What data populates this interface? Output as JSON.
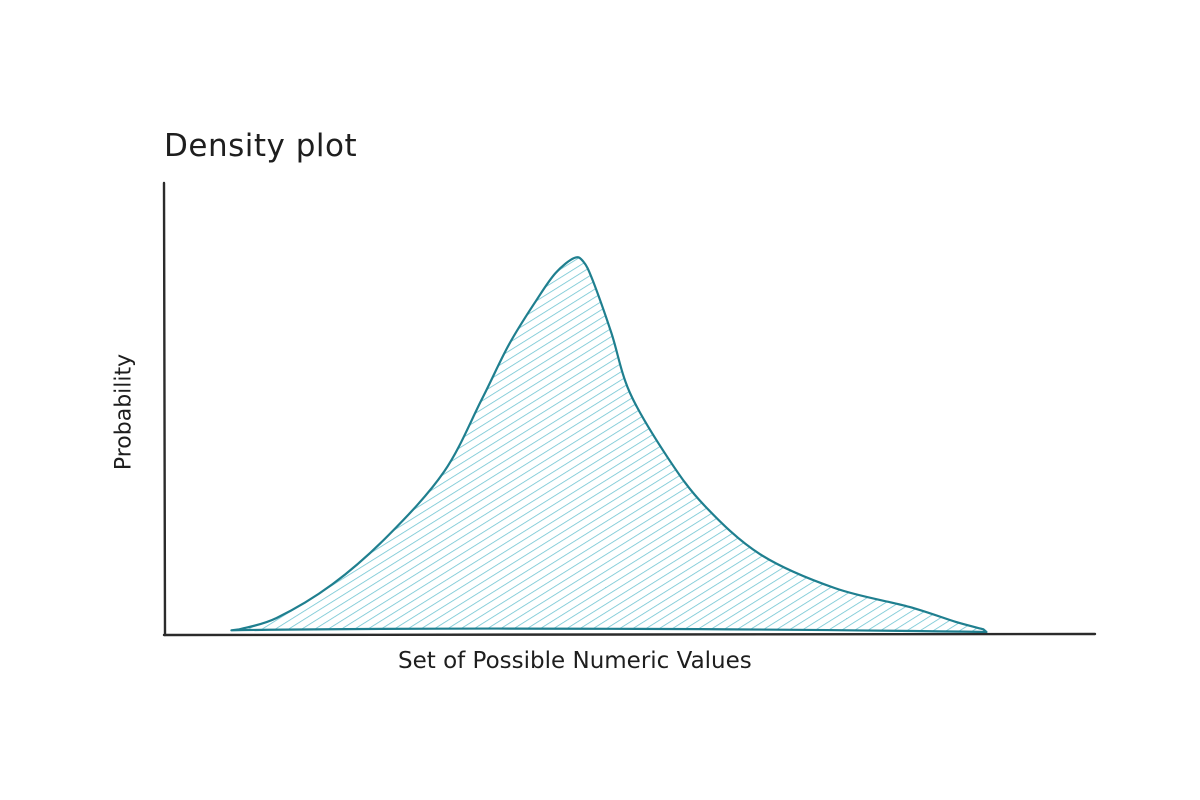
{
  "chart_data": {
    "type": "area",
    "title": "Density plot",
    "xlabel": "Set of Possible Numeric Values",
    "ylabel": "Probability",
    "grid": false,
    "legend": "none",
    "x_ticks": [],
    "y_ticks": [],
    "shape": "unimodal, right-skewed density curve",
    "series": [
      {
        "x": [
          0.08,
          0.12,
          0.18,
          0.24,
          0.3,
          0.34,
          0.37,
          0.4,
          0.42,
          0.44,
          0.45,
          0.46,
          0.48,
          0.5,
          0.54,
          0.58,
          0.64,
          0.72,
          0.8,
          0.85,
          0.88
        ],
        "y": [
          0.01,
          0.04,
          0.13,
          0.26,
          0.43,
          0.62,
          0.77,
          0.89,
          0.96,
          1.0,
          0.99,
          0.94,
          0.8,
          0.64,
          0.47,
          0.34,
          0.21,
          0.12,
          0.07,
          0.03,
          0.01
        ]
      }
    ],
    "colors": {
      "outline": "#1f7f8f",
      "fill_hatch": "#6fc4d2",
      "axes": "#2b2b2b",
      "text": "#1e1e1e"
    }
  }
}
